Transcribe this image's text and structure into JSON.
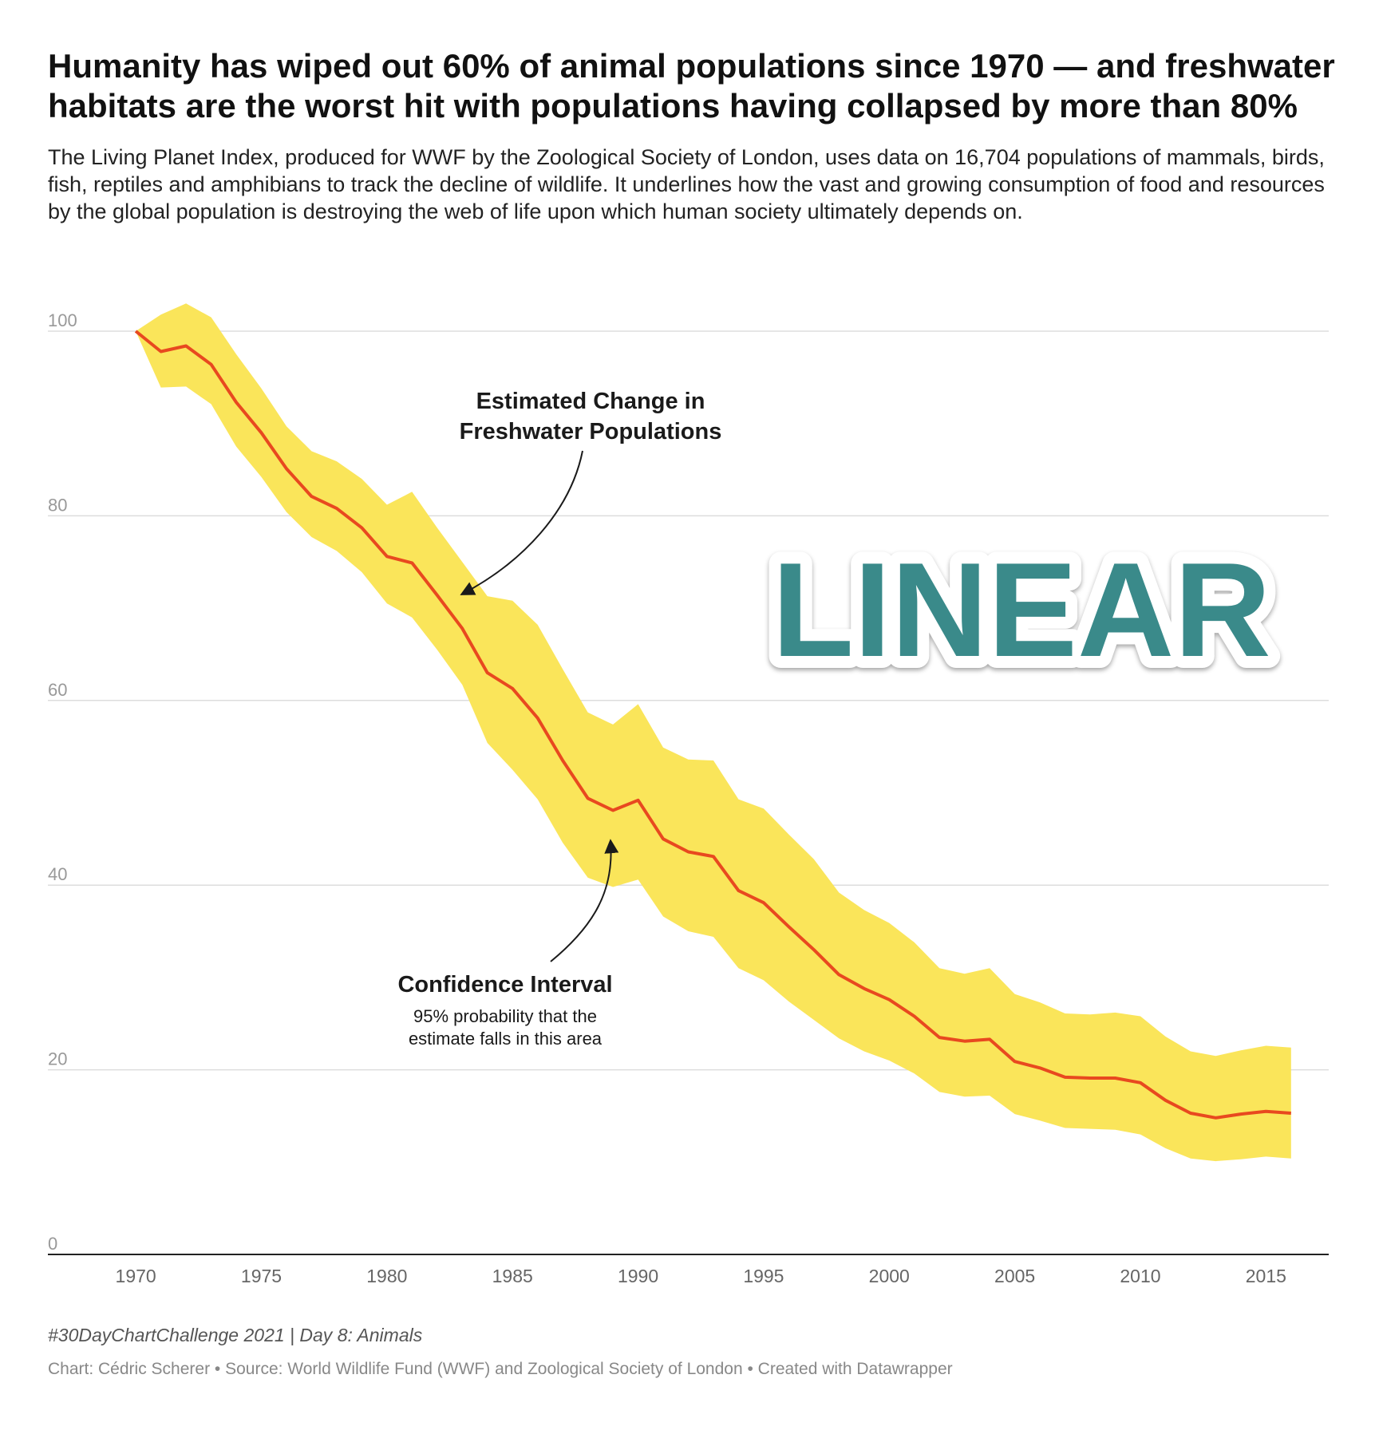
{
  "title": "Humanity has wiped out 60% of animal populations since 1970 — and freshwater habitats are the worst hit with populations having collapsed by more than 80%",
  "subtitle": "The Living Planet Index, produced for WWF by the Zoological Society of London, uses data on 16,704 populations of mammals, birds, fish, reptiles and amphibians to track the decline of wildlife. It underlines how the vast and growing consumption of food and resources by the global population is destroying the web of life upon which human society ultimately depends on.",
  "stamp": {
    "text": "LINEAR",
    "color": "#3a8a8a"
  },
  "annotations": {
    "line_label_1": "Estimated Change in",
    "line_label_2": "Freshwater Populations",
    "ci_title": "Confidence Interval",
    "ci_desc_1": "95% probability that the",
    "ci_desc_2": "estimate falls in this area"
  },
  "footer": {
    "challenge": "#30DayChartChallenge 2021 | Day 8: Animals",
    "credits": "Chart: Cédric Scherer • Source: World Wildlife Fund (WWF) and Zoological Society of London • Created with Datawrapper"
  },
  "colors": {
    "line": "#e8491f",
    "band": "#fae55a",
    "grid": "#dddddd",
    "axis": "#222222",
    "tick_label": "#999999",
    "x_label": "#666666"
  },
  "chart_data": {
    "type": "line",
    "title": "",
    "xlabel": "",
    "ylabel": "",
    "xlim": [
      1966.5,
      2017.5
    ],
    "ylim": [
      0,
      100
    ],
    "y_ticks": [
      0,
      20,
      40,
      60,
      80,
      100
    ],
    "x_ticks": [
      1970,
      1975,
      1980,
      1985,
      1990,
      1995,
      2000,
      2005,
      2010,
      2015
    ],
    "grid": true,
    "x": [
      1970,
      1971,
      1972,
      1973,
      1974,
      1975,
      1976,
      1977,
      1978,
      1979,
      1980,
      1981,
      1982,
      1983,
      1984,
      1985,
      1986,
      1987,
      1988,
      1989,
      1990,
      1991,
      1992,
      1993,
      1994,
      1995,
      1996,
      1997,
      1998,
      1999,
      2000,
      2001,
      2002,
      2003,
      2004,
      2005,
      2006,
      2007,
      2008,
      2009,
      2010,
      2011,
      2012,
      2013,
      2014,
      2015,
      2016
    ],
    "series": [
      {
        "name": "Estimated Change in Freshwater Populations",
        "values": [
          100,
          97.8,
          98.4,
          96.4,
          92.3,
          89.0,
          85.1,
          82.1,
          80.8,
          78.7,
          75.6,
          74.9,
          71.4,
          67.8,
          63.0,
          61.3,
          58.1,
          53.5,
          49.4,
          48.1,
          49.2,
          45.0,
          43.6,
          43.1,
          39.4,
          38.1,
          35.5,
          33.0,
          30.3,
          28.8,
          27.6,
          25.8,
          23.5,
          23.1,
          23.3,
          20.9,
          20.2,
          19.2,
          19.1,
          19.1,
          18.6,
          16.7,
          15.3,
          14.8,
          15.2,
          15.5,
          15.3
        ]
      },
      {
        "name": "Confidence Interval (upper)",
        "values": [
          100,
          101.8,
          103.0,
          101.5,
          97.5,
          93.8,
          89.7,
          87.0,
          85.9,
          84.0,
          81.2,
          82.6,
          78.7,
          75.0,
          71.3,
          70.8,
          68.2,
          63.4,
          58.7,
          57.4,
          59.6,
          54.9,
          53.6,
          53.5,
          49.3,
          48.3,
          45.5,
          42.8,
          39.2,
          37.3,
          35.9,
          33.8,
          31.0,
          30.4,
          31.0,
          28.2,
          27.3,
          26.1,
          26.0,
          26.2,
          25.8,
          23.6,
          22.0,
          21.5,
          22.1,
          22.6,
          22.4
        ]
      },
      {
        "name": "Confidence Interval (lower)",
        "values": [
          100,
          93.9,
          94.0,
          92.1,
          87.5,
          84.2,
          80.4,
          77.7,
          76.2,
          73.9,
          70.5,
          69.0,
          65.5,
          61.7,
          55.4,
          52.5,
          49.3,
          44.6,
          40.8,
          39.8,
          40.6,
          36.6,
          35.0,
          34.4,
          31.0,
          29.7,
          27.4,
          25.4,
          23.4,
          22.0,
          21.0,
          19.6,
          17.6,
          17.1,
          17.2,
          15.2,
          14.5,
          13.7,
          13.6,
          13.5,
          13.0,
          11.5,
          10.4,
          10.1,
          10.3,
          10.6,
          10.4
        ]
      }
    ]
  }
}
